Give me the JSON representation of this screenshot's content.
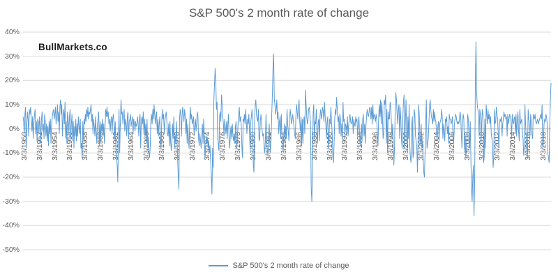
{
  "title": "S&P 500's 2 month rate of change",
  "watermark": "BullMarkets.co",
  "legend": {
    "label": "S&P 500's 2 month rate of change"
  },
  "colors": {
    "series": "#5B9BD5",
    "gridline": "#D9D9D9",
    "axis_line": "#BFBFBF",
    "axis_text": "#595959",
    "title_text": "#595959",
    "background": "#FFFFFF"
  },
  "chart_data": {
    "type": "line",
    "title": "S&P 500's 2 month rate of change",
    "xlabel": "",
    "ylabel": "",
    "ylim": [
      -50,
      40
    ],
    "yticks": [
      40,
      30,
      20,
      10,
      0,
      -10,
      -20,
      -30,
      -40,
      -50
    ],
    "ytick_labels": [
      "40%",
      "30%",
      "20%",
      "10%",
      "0%",
      "-10%",
      "-20%",
      "-30%",
      "-40%",
      "-50%"
    ],
    "xtick_labels": [
      "3/3/1950",
      "3/3/1952",
      "3/3/1954",
      "3/3/1956",
      "3/3/1958",
      "3/3/1960",
      "3/3/1962",
      "3/3/1964",
      "3/3/1966",
      "3/3/1968",
      "3/3/1970",
      "3/3/1972",
      "3/3/1974",
      "3/3/1976",
      "3/3/1978",
      "3/3/1980",
      "3/3/1982",
      "3/3/1984",
      "3/3/1986",
      "3/3/1988",
      "3/3/1990",
      "3/3/1992",
      "3/3/1994",
      "3/3/1996",
      "3/3/1998",
      "3/3/2000",
      "3/3/2002",
      "3/3/2004",
      "3/3/2006",
      "3/3/2008",
      "3/3/2010",
      "3/3/2012",
      "3/3/2014",
      "3/3/2016",
      "3/3/2018"
    ],
    "xtick_every_n_points": 24,
    "xtick_first_point_index": 2,
    "grid": true,
    "legend_position": "bottom",
    "series": [
      {
        "name": "S&P 500's 2 month rate of change",
        "color": "#5B9BD5",
        "start": "3/3/1950",
        "frequency": "monthly",
        "values": [
          5,
          3,
          -2,
          6,
          9,
          -8,
          2,
          7,
          4,
          -3,
          8,
          6,
          9,
          4,
          -1,
          5,
          -4,
          2,
          6,
          8,
          -2,
          3,
          -5,
          4,
          3,
          -2,
          5,
          1,
          -6,
          4,
          7,
          -1,
          2,
          -4,
          6,
          3,
          -3,
          2,
          -5,
          1,
          -7,
          3,
          -2,
          4,
          -6,
          2,
          5,
          7,
          8,
          4,
          6,
          9,
          2,
          5,
          10,
          3,
          7,
          -2,
          9,
          12,
          6,
          10,
          -3,
          5,
          8,
          2,
          11,
          -4,
          3,
          -6,
          7,
          4,
          -2,
          5,
          8,
          -4,
          2,
          6,
          -5,
          3,
          -8,
          1,
          -3,
          4,
          -5,
          2,
          -3,
          5,
          1,
          -2,
          4,
          -8,
          -6,
          -12,
          3,
          -4,
          4,
          2,
          6,
          3,
          8,
          5,
          9,
          4,
          7,
          6,
          8,
          10,
          3,
          6,
          -2,
          4,
          1,
          -3,
          5,
          -1,
          -6,
          2,
          4,
          7,
          -7,
          3,
          -5,
          2,
          -1,
          4,
          -3,
          2,
          -6,
          1,
          8,
          5,
          9,
          5,
          7,
          2,
          4,
          -1,
          3,
          5,
          -2,
          4,
          6,
          2,
          -4,
          3,
          -8,
          -12,
          -15,
          -22,
          -5,
          8,
          -10,
          2,
          12,
          6,
          7,
          2,
          5,
          8,
          -1,
          4,
          2,
          -3,
          5,
          7,
          -4,
          3,
          4,
          6,
          1,
          3,
          5,
          -2,
          4,
          2,
          -1,
          3,
          1,
          2,
          5,
          2,
          -3,
          4,
          6,
          -8,
          3,
          5,
          2,
          7,
          -2,
          4,
          -3,
          2,
          -6,
          4,
          -8,
          -4,
          -10,
          -12,
          -7,
          3,
          6,
          2,
          8,
          4,
          10,
          6,
          2,
          5,
          7,
          -2,
          4,
          -3,
          2,
          5,
          -5,
          -8,
          2,
          8,
          4,
          6,
          -2,
          3,
          5,
          7,
          4,
          -2,
          -3,
          2,
          -7,
          3,
          -5,
          -9,
          -6,
          2,
          -4,
          5,
          -8,
          -3,
          -6,
          3,
          -4,
          -12,
          -19,
          -25,
          4,
          8,
          6,
          -3,
          5,
          9,
          7,
          3,
          8,
          5,
          -2,
          4,
          -6,
          2,
          -4,
          -8,
          3,
          9,
          4,
          6,
          2,
          3,
          5,
          -2,
          1,
          4,
          -1,
          3,
          7,
          5,
          -4,
          -7,
          -2,
          -5,
          -8,
          -3,
          2,
          -6,
          4,
          -2,
          -12,
          -8,
          -3,
          -6,
          -4,
          -8,
          -5,
          -10,
          -7,
          -14,
          -20,
          -27,
          -8,
          -16,
          12,
          18,
          25,
          20,
          8,
          11,
          -4,
          -6,
          -9,
          5,
          7,
          3,
          14,
          10,
          5,
          2,
          -3,
          4,
          1,
          -2,
          3,
          -4,
          2,
          6,
          -5,
          -8,
          -2,
          1,
          -4,
          2,
          -3,
          -5,
          -2,
          -6,
          1,
          3,
          -8,
          -4,
          2,
          6,
          9,
          3,
          5,
          2,
          -7,
          -12,
          4,
          3,
          6,
          2,
          8,
          3,
          -2,
          4,
          2,
          6,
          -1,
          -9,
          3,
          5,
          8,
          2,
          -15,
          -18,
          2,
          10,
          12,
          6,
          4,
          3,
          8,
          -5,
          -4,
          3,
          6,
          2,
          -1,
          -3,
          -2,
          -8,
          -10,
          -4,
          6,
          -5,
          -9,
          -11,
          -3,
          2,
          -6,
          -9,
          -4,
          6,
          14,
          25,
          31,
          12,
          10,
          6,
          8,
          12,
          4,
          7,
          -2,
          3,
          5,
          -4,
          6,
          -3,
          -6,
          -9,
          -3,
          2,
          -5,
          1,
          -4,
          8,
          2,
          -1,
          -5,
          4,
          8,
          5,
          2,
          4,
          6,
          3,
          1,
          -2,
          -4,
          6,
          10,
          7,
          4,
          9,
          12,
          3,
          -1,
          5,
          -7,
          4,
          -6,
          3,
          5,
          -2,
          16,
          10,
          5,
          2,
          4,
          8,
          9,
          6,
          2,
          -25,
          -30,
          -15,
          6,
          10,
          -4,
          3,
          2,
          8,
          -2,
          -6,
          3,
          4,
          -5,
          6,
          8,
          4,
          6,
          9,
          7,
          3,
          11,
          5,
          2,
          -4,
          3,
          5,
          -8,
          -3,
          4,
          2,
          9,
          3,
          -2,
          -12,
          -14,
          -6,
          4,
          8,
          6,
          13,
          8,
          3,
          5,
          -2,
          6,
          4,
          -3,
          2,
          -4,
          11,
          3,
          4,
          -3,
          2,
          1,
          -2,
          5,
          -3,
          2,
          4,
          6,
          3,
          2,
          3,
          5,
          -2,
          4,
          2,
          1,
          5,
          3,
          4,
          -3,
          2,
          5,
          -2,
          -7,
          -3,
          2,
          -5,
          4,
          6,
          -3,
          2,
          -6,
          1,
          5,
          8,
          6,
          5,
          7,
          9,
          8,
          4,
          9,
          2,
          10,
          4,
          6,
          5,
          3,
          6,
          4,
          -2,
          -7,
          4,
          10,
          5,
          12,
          2,
          11,
          5,
          -4,
          -2,
          12,
          10,
          14,
          -6,
          8,
          -10,
          7,
          4,
          4,
          11,
          9,
          3,
          -4,
          2,
          -5,
          -15,
          -8,
          6,
          15,
          12,
          6,
          2,
          8,
          10,
          -4,
          9,
          3,
          -5,
          -8,
          4,
          11,
          14,
          -8,
          2,
          12,
          -2,
          -9,
          5,
          -4,
          10,
          -7,
          -12,
          -14,
          2,
          5,
          -12,
          -10,
          8,
          6,
          -3,
          -5,
          -8,
          -18,
          -4,
          10,
          5,
          -4,
          -6,
          2,
          -8,
          -5,
          -12,
          -18,
          -20,
          -10,
          2,
          12,
          -8,
          -6,
          -4,
          2,
          9,
          12,
          8,
          5,
          4,
          2,
          8,
          3,
          7,
          4,
          3,
          -2,
          -4,
          1,
          3,
          -5,
          2,
          3,
          4,
          8,
          5,
          -4,
          2,
          -1,
          -5,
          4,
          3,
          5,
          -2,
          1,
          -6,
          6,
          4,
          4,
          2,
          3,
          5,
          -4,
          -6,
          2,
          4,
          6,
          5,
          3,
          2,
          3,
          2,
          4,
          7,
          5,
          -2,
          -8,
          3,
          6,
          4,
          -9,
          -3,
          -12,
          -8,
          -4,
          6,
          4,
          -2,
          -8,
          3,
          -12,
          -25,
          -30,
          -20,
          -15,
          -36,
          -20,
          20,
          36,
          15,
          10,
          8,
          6,
          -3,
          8,
          6,
          -6,
          2,
          8,
          6,
          -14,
          -12,
          4,
          -8,
          10,
          6,
          2,
          8,
          4,
          6,
          2,
          5,
          -2,
          -4,
          -6,
          -16,
          -12,
          8,
          2,
          3,
          9,
          6,
          4,
          -2,
          -8,
          2,
          4,
          3,
          5,
          -3,
          2,
          4,
          7,
          5,
          6,
          4,
          5,
          -3,
          6,
          2,
          4,
          6,
          5,
          4,
          -4,
          6,
          3,
          2,
          4,
          5,
          -2,
          6,
          -3,
          4,
          7,
          -1,
          -5,
          8,
          2,
          3,
          4,
          -2,
          -4,
          -11,
          -8,
          10,
          2,
          -3,
          -9,
          -12,
          8,
          4,
          2,
          -3,
          6,
          3,
          -2,
          -4,
          6,
          5,
          4,
          6,
          3,
          2,
          3,
          4,
          2,
          3,
          4,
          5,
          6,
          4,
          10,
          -8,
          -6,
          2,
          4,
          3,
          6,
          5,
          2,
          -10,
          -12,
          -14,
          2,
          12,
          19
        ]
      }
    ]
  }
}
